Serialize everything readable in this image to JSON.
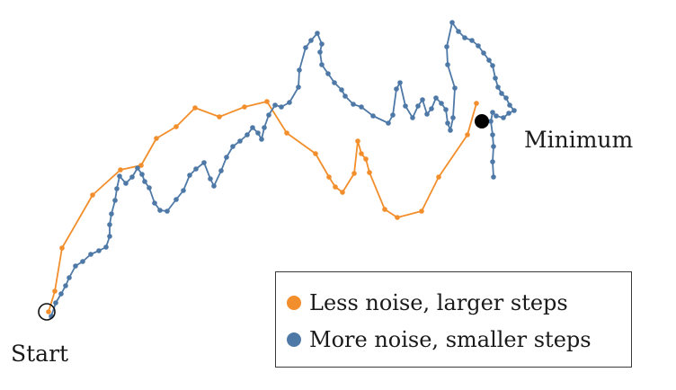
{
  "labels": {
    "start": "Start",
    "minimum": "Minimum"
  },
  "legend": {
    "items": [
      {
        "label": "Less noise, larger steps",
        "color": "#f28e2b"
      },
      {
        "label": "More noise, smaller steps",
        "color": "#4e79a7"
      }
    ]
  },
  "paths": {
    "less_noise": {
      "color": "#f28e2b",
      "points": [
        [
          54,
          347
        ],
        [
          61,
          324
        ],
        [
          69,
          276
        ],
        [
          103,
          217
        ],
        [
          134,
          189
        ],
        [
          157,
          184
        ],
        [
          174,
          154
        ],
        [
          196,
          141
        ],
        [
          217,
          120
        ],
        [
          244,
          130
        ],
        [
          272,
          119
        ],
        [
          297,
          113
        ],
        [
          319,
          148
        ],
        [
          351,
          171
        ],
        [
          366,
          197
        ],
        [
          373,
          208
        ],
        [
          381,
          214
        ],
        [
          394,
          193
        ],
        [
          398,
          157
        ],
        [
          402,
          171
        ],
        [
          407,
          177
        ],
        [
          411,
          192
        ],
        [
          428,
          233
        ],
        [
          442,
          242
        ],
        [
          469,
          235
        ],
        [
          488,
          197
        ],
        [
          520,
          150
        ],
        [
          530,
          115
        ]
      ]
    },
    "more_noise": {
      "color": "#4e79a7",
      "points": [
        [
          57,
          352
        ],
        [
          62,
          337
        ],
        [
          68,
          327
        ],
        [
          73,
          318
        ],
        [
          77,
          309
        ],
        [
          84,
          296
        ],
        [
          92,
          291
        ],
        [
          101,
          283
        ],
        [
          110,
          279
        ],
        [
          118,
          275
        ],
        [
          122,
          263
        ],
        [
          122,
          250
        ],
        [
          124,
          238
        ],
        [
          128,
          223
        ],
        [
          130,
          210
        ],
        [
          133,
          196
        ],
        [
          140,
          204
        ],
        [
          147,
          197
        ],
        [
          153,
          187
        ],
        [
          158,
          194
        ],
        [
          161,
          202
        ],
        [
          166,
          209
        ],
        [
          172,
          226
        ],
        [
          178,
          234
        ],
        [
          186,
          235
        ],
        [
          196,
          222
        ],
        [
          204,
          212
        ],
        [
          211,
          195
        ],
        [
          218,
          188
        ],
        [
          227,
          181
        ],
        [
          234,
          199
        ],
        [
          238,
          207
        ],
        [
          246,
          190
        ],
        [
          252,
          175
        ],
        [
          259,
          163
        ],
        [
          267,
          157
        ],
        [
          275,
          150
        ],
        [
          281,
          142
        ],
        [
          287,
          148
        ],
        [
          291,
          155
        ],
        [
          294,
          142
        ],
        [
          299,
          128
        ],
        [
          306,
          117
        ],
        [
          313,
          119
        ],
        [
          322,
          114
        ],
        [
          332,
          97
        ],
        [
          333,
          78
        ],
        [
          340,
          53
        ],
        [
          346,
          45
        ],
        [
          353,
          37
        ],
        [
          358,
          49
        ],
        [
          356,
          58
        ],
        [
          358,
          72
        ],
        [
          365,
          82
        ],
        [
          372,
          92
        ],
        [
          380,
          100
        ],
        [
          384,
          107
        ],
        [
          393,
          116
        ],
        [
          402,
          119
        ],
        [
          415,
          129
        ],
        [
          432,
          137
        ],
        [
          437,
          128
        ],
        [
          441,
          99
        ],
        [
          445,
          92
        ],
        [
          451,
          118
        ],
        [
          459,
          131
        ],
        [
          465,
          118
        ],
        [
          470,
          111
        ],
        [
          475,
          127
        ],
        [
          480,
          121
        ],
        [
          485,
          109
        ],
        [
          491,
          115
        ],
        [
          496,
          122
        ],
        [
          498,
          137
        ],
        [
          501,
          145
        ],
        [
          504,
          131
        ],
        [
          506,
          98
        ],
        [
          498,
          72
        ],
        [
          497,
          52
        ],
        [
          503,
          25
        ],
        [
          510,
          35
        ],
        [
          517,
          42
        ],
        [
          525,
          45
        ],
        [
          532,
          51
        ],
        [
          538,
          59
        ],
        [
          544,
          67
        ],
        [
          548,
          73
        ],
        [
          551,
          87
        ],
        [
          554,
          97
        ],
        [
          558,
          104
        ],
        [
          563,
          109
        ],
        [
          567,
          117
        ],
        [
          572,
          123
        ],
        [
          566,
          126
        ],
        [
          560,
          131
        ],
        [
          552,
          129
        ],
        [
          548,
          125
        ],
        [
          546,
          135
        ],
        [
          548,
          150
        ],
        [
          549,
          163
        ],
        [
          548,
          180
        ],
        [
          549,
          197
        ]
      ]
    }
  },
  "markers": {
    "start": {
      "x": 52,
      "y": 347
    },
    "minimum": {
      "x": 536,
      "y": 135
    }
  }
}
